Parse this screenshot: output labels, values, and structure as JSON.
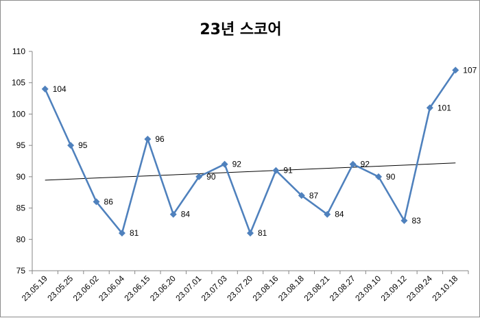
{
  "chart_data": {
    "type": "line",
    "title": "23년 스코어",
    "xlabel": "",
    "ylabel": "",
    "categories": [
      "23.05.19",
      "23.05.25",
      "23.06.02",
      "23.06.04",
      "23.06.15",
      "23.06.20",
      "23.07.01",
      "23.07.03",
      "23.07.20",
      "23.08.16",
      "23.08.18",
      "23.08.21",
      "23.08.27",
      "23.09.10",
      "23.09.12",
      "23.09.24",
      "23.10.18"
    ],
    "series": [
      {
        "values": [
          104,
          95,
          86,
          81,
          96,
          84,
          90,
          92,
          81,
          91,
          87,
          84,
          92,
          90,
          83,
          101,
          107
        ],
        "color": "#4f81bd",
        "marker": "diamond",
        "data_labels": [
          "104",
          "95",
          "86",
          "81",
          "96",
          "84",
          "90",
          "92",
          "81",
          "91",
          "87",
          "84",
          "92",
          "90",
          "83",
          "101",
          "107"
        ]
      }
    ],
    "trendline": {
      "type": "linear",
      "color": "#000000"
    },
    "ylim": [
      75,
      110
    ],
    "yticks": [
      "75",
      "80",
      "85",
      "90",
      "95",
      "100",
      "105",
      "110"
    ],
    "grid": false,
    "legend": "none"
  }
}
